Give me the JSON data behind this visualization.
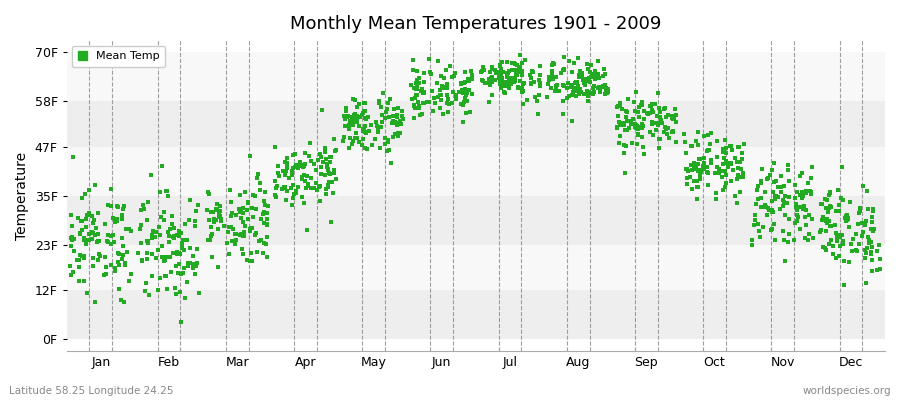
{
  "title": "Monthly Mean Temperatures 1901 - 2009",
  "ylabel": "Temperature",
  "xlabel_bottom_left": "Latitude 58.25 Longitude 24.25",
  "xlabel_bottom_right": "worldspecies.org",
  "legend_label": "Mean Temp",
  "dot_color": "#22aa22",
  "background_color": "#ffffff",
  "plot_bg_color": "#ffffff",
  "band_colors": [
    "#eeeeee",
    "#f8f8f8"
  ],
  "yticks": [
    0,
    12,
    23,
    35,
    47,
    58,
    70
  ],
  "ytick_labels": [
    "0F",
    "12F",
    "23F",
    "35F",
    "47F",
    "58F",
    "70F"
  ],
  "ylim": [
    -3,
    73
  ],
  "months": [
    "Jan",
    "Feb",
    "Mar",
    "Apr",
    "May",
    "Jun",
    "Jul",
    "Aug",
    "Sep",
    "Oct",
    "Nov",
    "Dec"
  ],
  "n_years": 109,
  "month_mean_temps_C": [
    -4.5,
    -5.2,
    -1.8,
    4.8,
    11.3,
    15.8,
    17.8,
    16.8,
    11.5,
    5.8,
    0.5,
    -3.0
  ],
  "month_std_temps_C": [
    3.5,
    3.8,
    2.8,
    2.2,
    2.0,
    1.8,
    1.5,
    1.6,
    1.8,
    2.0,
    2.5,
    3.0
  ]
}
